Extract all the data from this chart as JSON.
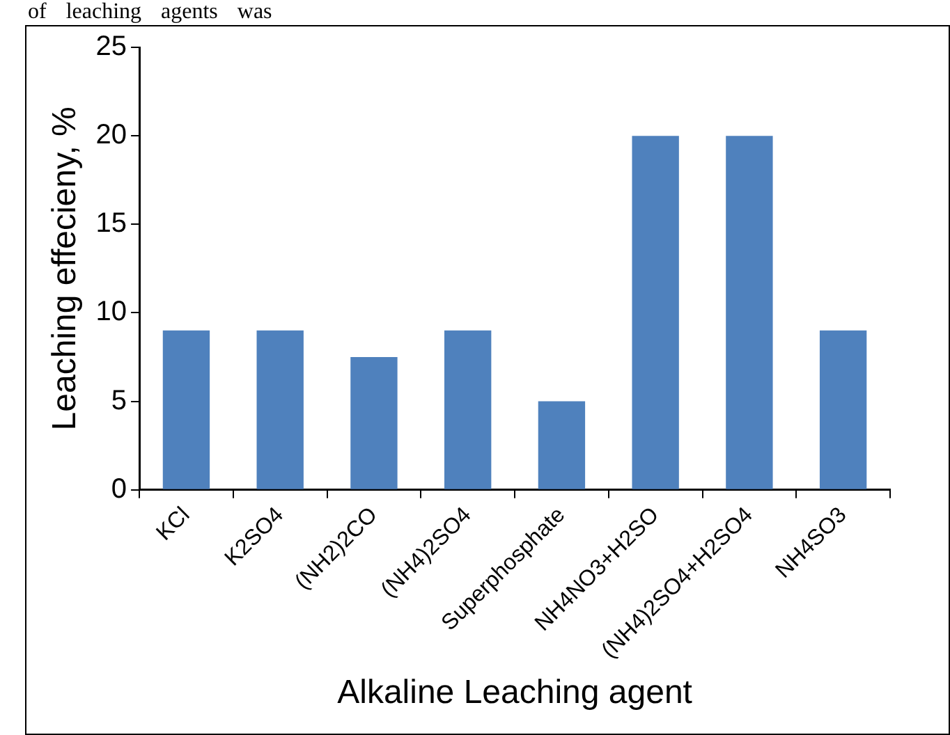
{
  "chart_data": {
    "type": "bar",
    "xlabel": "Alkaline Leaching agent",
    "ylabel": "Leaching effecieny, %",
    "categories": [
      "KCl",
      "K2SO4",
      "(NH2)2CO",
      "(NH4)2SO4",
      "Superphosphate",
      "NH4NO3+H2SO",
      "(NH4)2SO4+H2SO4",
      "NH4SO3"
    ],
    "values": [
      9,
      9,
      7.5,
      9,
      5,
      20,
      20,
      9
    ],
    "color": "#4f81bd",
    "ylim": [
      0,
      25
    ],
    "yticks": [
      0,
      5,
      10,
      15,
      20,
      25
    ],
    "grid": false,
    "legend": false,
    "annotations": [
      "of leaching agents was"
    ]
  }
}
